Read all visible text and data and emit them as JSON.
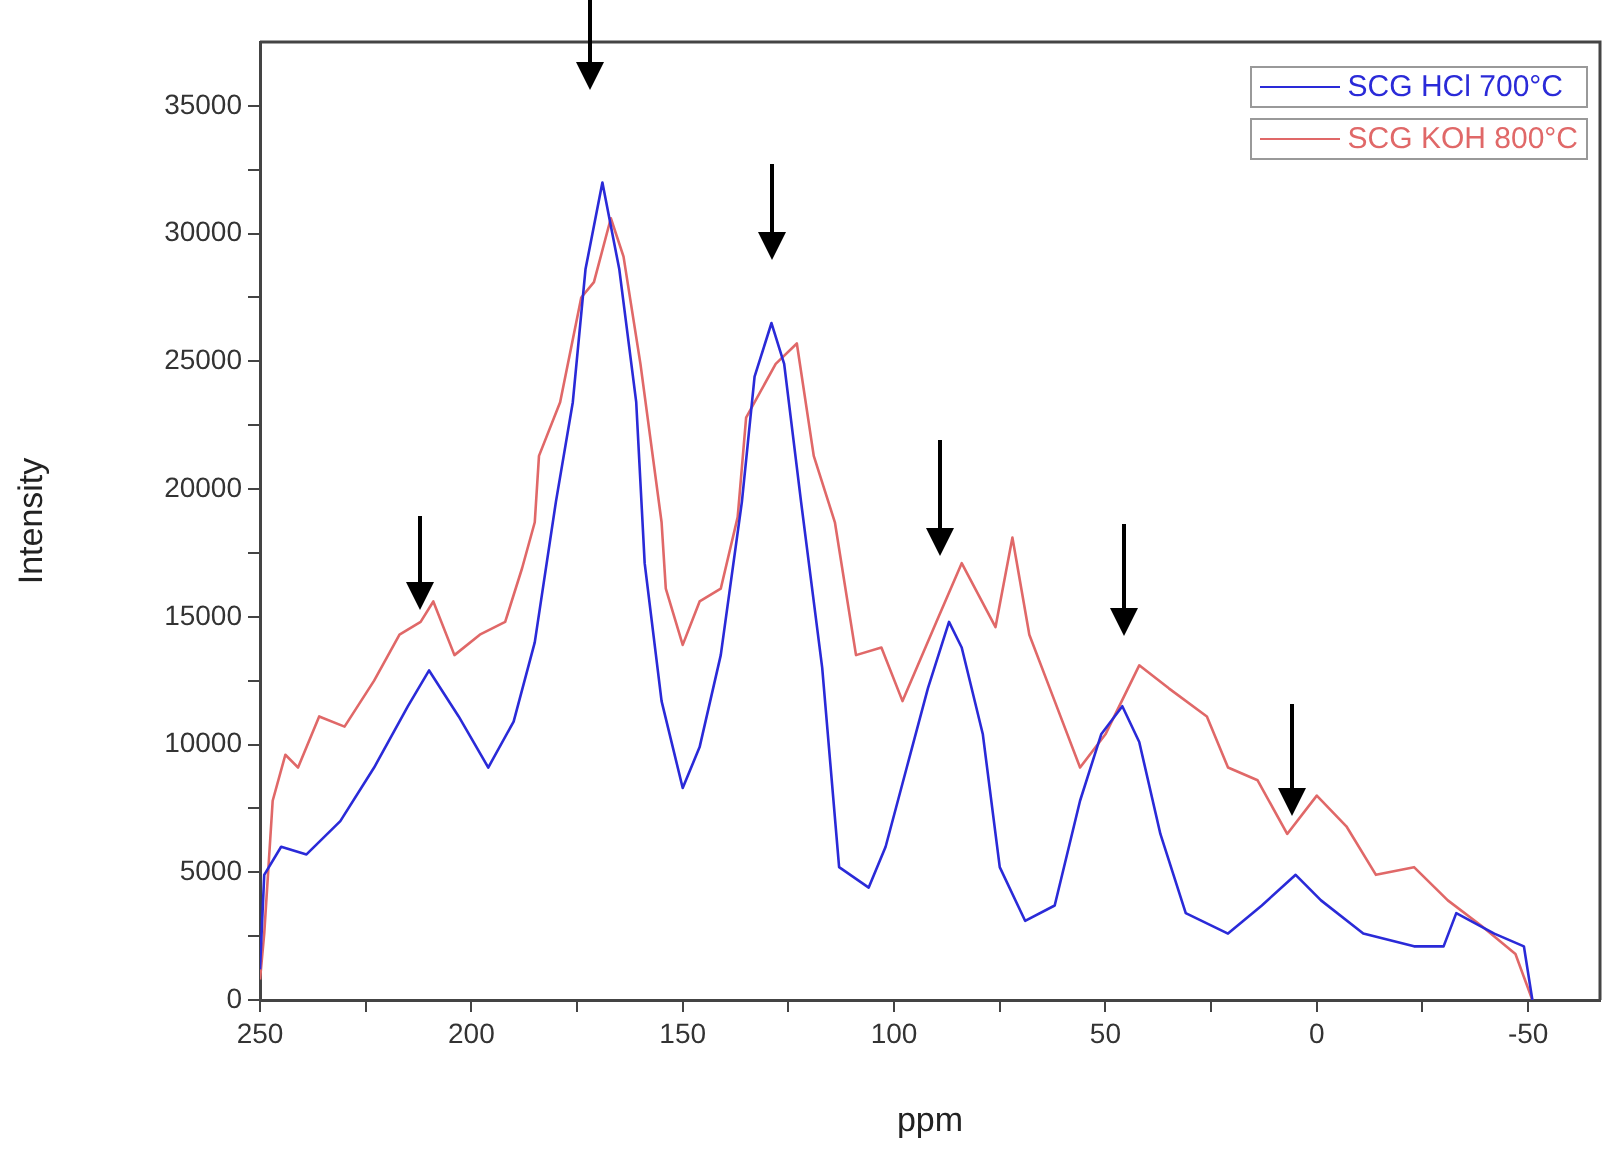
{
  "chart_data": {
    "type": "line",
    "xlabel": "ppm",
    "ylabel": "Intensity",
    "xlim": [
      250,
      -67
    ],
    "xticks": [
      250,
      {
        "value": 225,
        "label": null
      },
      200,
      {
        "value": 175,
        "label": null
      },
      150,
      {
        "value": 125,
        "label": null
      },
      100,
      {
        "value": 75,
        "label": null
      },
      50,
      {
        "value": 25,
        "label": null
      },
      0,
      {
        "value": -25,
        "label": null
      },
      -50
    ],
    "ylim": [
      0,
      37500
    ],
    "yticks": [
      0,
      {
        "value": 2500,
        "label": null
      },
      5000,
      {
        "value": 7500,
        "label": null
      },
      10000,
      {
        "value": 12500,
        "label": null
      },
      15000,
      {
        "value": 17500,
        "label": null
      },
      20000,
      {
        "value": 22500,
        "label": null
      },
      25000,
      {
        "value": 27500,
        "label": null
      },
      30000,
      {
        "value": 32500,
        "label": null
      },
      35000
    ],
    "grid": false,
    "legend": "top right",
    "marker": "none",
    "line_style": "solid",
    "series": [
      {
        "name": "SCG HCl 700°C",
        "color": "#2a2ad8",
        "x": [
          250,
          249,
          245,
          239,
          231,
          223,
          215,
          210,
          203,
          196,
          190,
          185,
          180,
          176,
          173,
          169,
          165,
          161,
          159,
          155,
          150,
          146,
          141,
          136,
          133,
          129,
          126,
          122,
          117,
          113,
          106,
          102,
          97,
          92,
          87,
          84,
          79,
          75,
          69,
          62,
          56,
          51,
          46,
          42,
          37,
          31,
          21,
          13,
          5,
          -1,
          -11,
          -23,
          -30,
          -33,
          -42,
          -49,
          -51
        ],
        "values": [
          1200,
          4900,
          6000,
          5700,
          7000,
          9100,
          11500,
          12900,
          11100,
          9100,
          10900,
          14000,
          19500,
          23400,
          28600,
          32000,
          28600,
          23400,
          17100,
          11700,
          8300,
          9900,
          13500,
          19500,
          24400,
          26500,
          24900,
          19500,
          13000,
          5200,
          4400,
          6000,
          9100,
          12200,
          14800,
          13800,
          10400,
          5200,
          3100,
          3700,
          7800,
          10400,
          11500,
          10100,
          6500,
          3400,
          2600,
          3700,
          4900,
          3900,
          2600,
          2100,
          2100,
          3400,
          2600,
          2100,
          0
        ]
      },
      {
        "name": "SCG KOH 800°C",
        "color": "#e06868",
        "x": [
          250,
          249,
          247,
          244,
          241,
          236,
          230,
          223,
          217,
          212,
          209,
          204,
          198,
          192,
          188,
          185,
          184,
          179,
          174,
          171,
          167,
          164,
          160,
          155,
          154,
          150,
          146,
          141,
          137,
          135,
          128,
          123,
          119,
          114,
          109,
          103,
          98,
          90,
          84,
          76,
          72,
          68,
          62,
          56,
          50,
          42,
          35,
          26,
          21,
          14,
          7,
          0,
          -7,
          -14,
          -23,
          -31,
          -39,
          -47,
          -51
        ],
        "values": [
          800,
          2600,
          7800,
          9600,
          9100,
          11100,
          10700,
          12500,
          14300,
          14800,
          15600,
          13500,
          14300,
          14800,
          16900,
          18700,
          21300,
          23400,
          27500,
          28100,
          30600,
          29100,
          24900,
          18700,
          16100,
          13900,
          15600,
          16100,
          18900,
          22800,
          24900,
          25700,
          21300,
          18700,
          13500,
          13800,
          11700,
          14800,
          17100,
          14600,
          18100,
          14300,
          11700,
          9100,
          10400,
          13100,
          12200,
          11100,
          9100,
          8600,
          6500,
          8000,
          6800,
          4900,
          5200,
          3900,
          2900,
          1800,
          0
        ]
      }
    ]
  }
}
